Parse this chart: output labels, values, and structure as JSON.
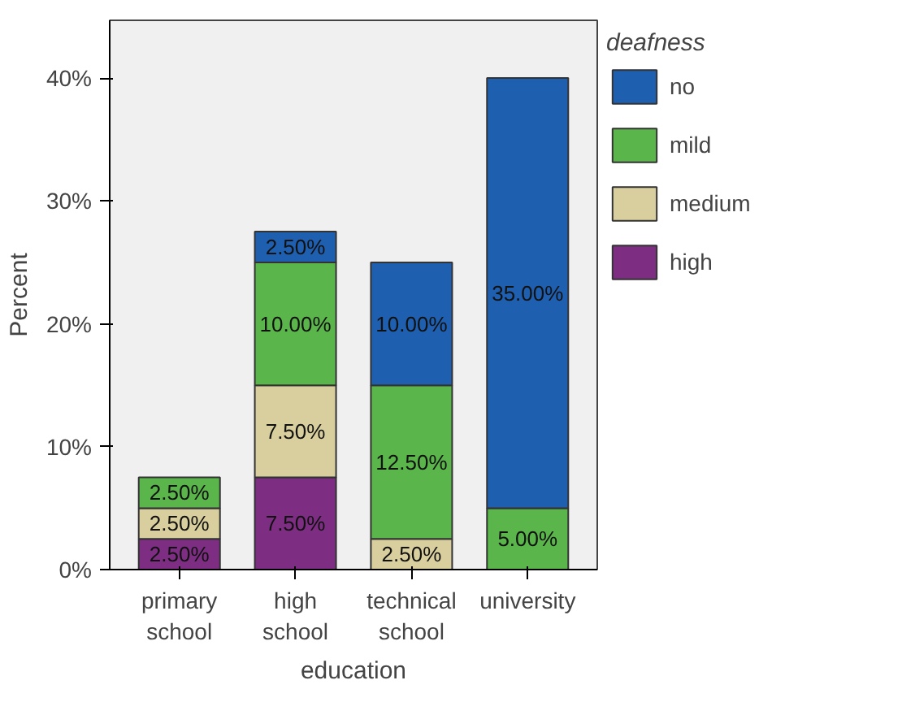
{
  "chart_data": {
    "type": "bar",
    "stacked": true,
    "xlabel": "education",
    "ylabel": "Percent",
    "legend_title": "deafness",
    "legend": "right",
    "categories": [
      "primary school",
      "high school",
      "technical school",
      "university"
    ],
    "series": [
      {
        "name": "high",
        "color": "#7d2e82",
        "values": [
          2.5,
          7.5,
          null,
          null
        ],
        "value_labels": [
          "2.50%",
          "7.50%",
          null,
          null
        ]
      },
      {
        "name": "medium",
        "color": "#d9cf9e",
        "values": [
          2.5,
          7.5,
          2.5,
          null
        ],
        "value_labels": [
          "2.50%",
          "7.50%",
          "2.50%",
          null
        ]
      },
      {
        "name": "mild",
        "color": "#5ab54a",
        "values": [
          2.5,
          10,
          12.5,
          5
        ],
        "value_labels": [
          "2.50%",
          "10.00%",
          "12.50%",
          "5.00%"
        ]
      },
      {
        "name": "no",
        "color": "#1f5fb0",
        "values": [
          null,
          2.5,
          10,
          35
        ],
        "value_labels": [
          null,
          "2.50%",
          "10.00%",
          "35.00%"
        ]
      }
    ],
    "ylim": [
      0,
      44.7
    ],
    "yticks": [
      {
        "value": 0,
        "label": "0%"
      },
      {
        "value": 10,
        "label": "10%"
      },
      {
        "value": 20,
        "label": "20%"
      },
      {
        "value": 30,
        "label": "30%"
      },
      {
        "value": 40,
        "label": "40%"
      }
    ],
    "grid": false
  }
}
